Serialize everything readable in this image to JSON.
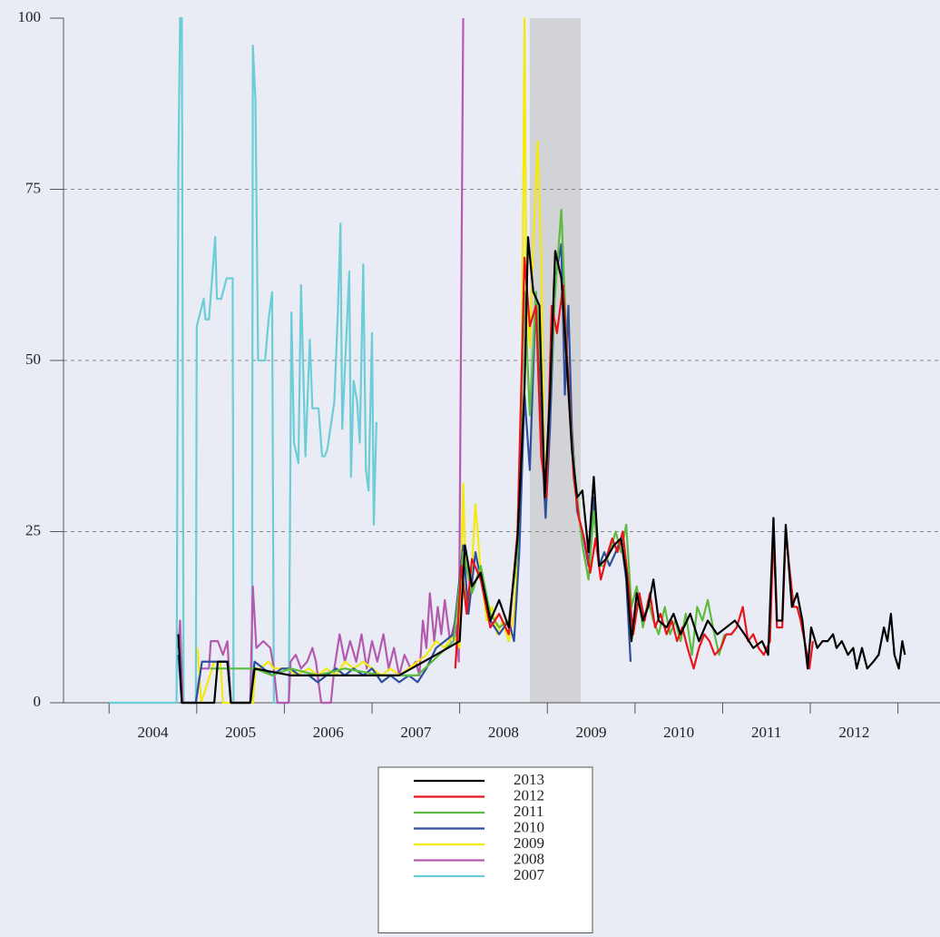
{
  "chart_data": {
    "type": "line",
    "xlim": [
      2003.48,
      2013.48
    ],
    "xticks": [
      2004,
      2005,
      2006,
      2007,
      2008,
      2009,
      2010,
      2011,
      2012,
      2013
    ],
    "ylim": [
      0,
      100
    ],
    "yticks": [
      0,
      25,
      50,
      75,
      100
    ],
    "grid": true,
    "legend": "bottom-center",
    "shaded_span": [
      2008.8,
      2009.38
    ],
    "series": [
      {
        "name": "2013",
        "color": "#000000",
        "x": [
          2004.79,
          2004.83,
          2005.2,
          2005.24,
          2005.35,
          2005.39,
          2005.61,
          2005.66,
          2006.07,
          2006.48,
          2006.9,
          2007.31,
          2007.73,
          2008.0,
          2008.06,
          2008.14,
          2008.24,
          2008.35,
          2008.45,
          2008.56,
          2008.66,
          2008.74,
          2008.78,
          2008.84,
          2008.91,
          2008.97,
          2009.03,
          2009.09,
          2009.16,
          2009.22,
          2009.28,
          2009.34,
          2009.4,
          2009.47,
          2009.53,
          2009.59,
          2009.67,
          2009.76,
          2009.84,
          2009.9,
          2009.96,
          2010.02,
          2010.09,
          2010.15,
          2010.21,
          2010.27,
          2010.36,
          2010.44,
          2010.52,
          2010.63,
          2010.73,
          2010.83,
          2010.94,
          2011.04,
          2011.14,
          2011.25,
          2011.35,
          2011.45,
          2011.52,
          2011.58,
          2011.62,
          2011.68,
          2011.72,
          2011.79,
          2011.85,
          2011.91,
          2011.97,
          2012.01,
          2012.08,
          2012.14,
          2012.2,
          2012.26,
          2012.3,
          2012.36,
          2012.43,
          2012.49,
          2012.53,
          2012.59,
          2012.65,
          2012.72,
          2012.78,
          2012.84,
          2012.88,
          2012.92,
          2012.96,
          2013.01,
          2013.05,
          2013.08
        ],
        "values": [
          10,
          0,
          0,
          6,
          6,
          0,
          0,
          5,
          4,
          4,
          4,
          4,
          7,
          9,
          23,
          17,
          19,
          12,
          15,
          11,
          24,
          46,
          68,
          60,
          58,
          30,
          45,
          66,
          62,
          50,
          37,
          30,
          31,
          22,
          33,
          20,
          21,
          23,
          24,
          19,
          9,
          16,
          12,
          14,
          18,
          12,
          11,
          13,
          10,
          13,
          9,
          12,
          10,
          11,
          12,
          10,
          8,
          9,
          7,
          27,
          12,
          12,
          26,
          14,
          16,
          12,
          5,
          11,
          8,
          9,
          9,
          10,
          8,
          9,
          7,
          8,
          5,
          8,
          5,
          6,
          7,
          11,
          9,
          13,
          7,
          5,
          9,
          7
        ]
      },
      {
        "name": "2012",
        "color": "#e8141c",
        "x": [
          2007.95,
          2008.02,
          2008.08,
          2008.14,
          2008.24,
          2008.35,
          2008.45,
          2008.56,
          2008.66,
          2008.74,
          2008.8,
          2008.87,
          2008.93,
          2008.99,
          2009.05,
          2009.11,
          2009.18,
          2009.24,
          2009.3,
          2009.36,
          2009.42,
          2009.49,
          2009.55,
          2009.61,
          2009.67,
          2009.74,
          2009.8,
          2009.86,
          2009.92,
          2009.98,
          2010.05,
          2010.11,
          2010.17,
          2010.23,
          2010.29,
          2010.36,
          2010.42,
          2010.48,
          2010.54,
          2010.6,
          2010.67,
          2010.73,
          2010.79,
          2010.85,
          2010.91,
          2010.98,
          2011.04,
          2011.1,
          2011.16,
          2011.23,
          2011.29,
          2011.35,
          2011.41,
          2011.47,
          2011.54,
          2011.58,
          2011.62,
          2011.68,
          2011.72,
          2011.76,
          2011.81,
          2011.85,
          2011.89,
          2011.95,
          2011.99,
          2012.03
        ],
        "values": [
          5,
          20,
          13,
          21,
          18,
          11,
          13,
          10,
          25,
          65,
          55,
          58,
          36,
          30,
          58,
          54,
          61,
          47,
          33,
          27,
          24,
          19,
          24,
          18,
          21,
          24,
          22,
          25,
          18,
          10,
          16,
          12,
          16,
          11,
          13,
          10,
          12,
          9,
          11,
          8,
          5,
          8,
          10,
          9,
          7,
          8,
          10,
          10,
          11,
          14,
          9,
          10,
          8,
          7,
          9,
          25,
          11,
          11,
          25,
          20,
          14,
          14,
          12,
          8,
          5,
          9
        ]
      },
      {
        "name": "2011",
        "color": "#5dbb3f",
        "x": [
          2005.16,
          2005.35,
          2005.66,
          2005.86,
          2006.07,
          2006.38,
          2006.69,
          2007.11,
          2007.52,
          2007.93,
          2008.04,
          2008.14,
          2008.24,
          2008.35,
          2008.45,
          2008.56,
          2008.66,
          2008.74,
          2008.8,
          2008.87,
          2008.93,
          2008.97,
          2009.03,
          2009.09,
          2009.16,
          2009.22,
          2009.28,
          2009.34,
          2009.4,
          2009.47,
          2009.53,
          2009.59,
          2009.65,
          2009.71,
          2009.78,
          2009.84,
          2009.9,
          2009.96,
          2010.02,
          2010.09,
          2010.15,
          2010.21,
          2010.27,
          2010.34,
          2010.4,
          2010.46,
          2010.52,
          2010.58,
          2010.65,
          2010.71,
          2010.77,
          2010.83,
          2010.89,
          2010.96,
          2011.02
        ],
        "values": [
          5,
          5,
          5,
          4,
          5,
          4,
          5,
          4,
          4,
          9,
          22,
          16,
          20,
          13,
          11,
          12,
          22,
          60,
          42,
          60,
          48,
          30,
          45,
          60,
          72,
          52,
          38,
          30,
          23,
          18,
          28,
          20,
          20,
          22,
          25,
          22,
          26,
          14,
          17,
          11,
          15,
          12,
          10,
          14,
          10,
          12,
          9,
          13,
          7,
          14,
          12,
          15,
          11,
          7,
          10
        ]
      },
      {
        "name": "2010",
        "color": "#2f4f9e",
        "x": [
          2004.79,
          2004.83,
          2004.99,
          2005.06,
          2005.28,
          2005.35,
          2005.39,
          2005.61,
          2005.66,
          2005.76,
          2005.86,
          2005.97,
          2006.07,
          2006.17,
          2006.28,
          2006.38,
          2006.48,
          2006.59,
          2006.69,
          2006.79,
          2006.9,
          2007.0,
          2007.11,
          2007.21,
          2007.31,
          2007.42,
          2007.52,
          2007.62,
          2007.73,
          2007.83,
          2007.93,
          2008.04,
          2008.1,
          2008.18,
          2008.24,
          2008.35,
          2008.45,
          2008.56,
          2008.62,
          2008.68,
          2008.74,
          2008.8,
          2008.87,
          2008.93,
          2008.98,
          2009.03,
          2009.09,
          2009.16,
          2009.2,
          2009.24,
          2009.28,
          2009.34,
          2009.4,
          2009.47,
          2009.53,
          2009.59,
          2009.65,
          2009.71,
          2009.78,
          2009.84,
          2009.9,
          2009.95
        ],
        "values": [
          7,
          0,
          0,
          6,
          6,
          6,
          0,
          0,
          6,
          5,
          4,
          5,
          5,
          4,
          4,
          3,
          4,
          5,
          4,
          5,
          4,
          5,
          3,
          4,
          3,
          4,
          3,
          5,
          8,
          9,
          10,
          23,
          13,
          22,
          18,
          12,
          10,
          12,
          9,
          22,
          45,
          34,
          60,
          40,
          27,
          40,
          62,
          67,
          45,
          58,
          40,
          28,
          25,
          20,
          30,
          20,
          22,
          20,
          22,
          24,
          18,
          6
        ]
      },
      {
        "name": "2009",
        "color": "#f5e90c",
        "x": [
          2005.01,
          2005.05,
          2005.2,
          2005.27,
          2005.3,
          2005.64,
          2005.67,
          2005.72,
          2005.82,
          2005.88,
          2006.05,
          2006.13,
          2006.28,
          2006.38,
          2006.48,
          2006.59,
          2006.69,
          2006.79,
          2006.9,
          2007.0,
          2007.11,
          2007.21,
          2007.31,
          2007.42,
          2007.52,
          2007.62,
          2007.73,
          2007.83,
          2007.93,
          2008.0,
          2008.04,
          2008.08,
          2008.14,
          2008.18,
          2008.24,
          2008.31,
          2008.37,
          2008.43,
          2008.49,
          2008.56,
          2008.62,
          2008.66,
          2008.7,
          2008.74,
          2008.76,
          2008.8,
          2008.84,
          2008.89,
          2008.93,
          2008.97,
          2009.01,
          2009.05
        ],
        "values": [
          8,
          0,
          6,
          6,
          0,
          0,
          5,
          5,
          6,
          5,
          5,
          4,
          5,
          4,
          5,
          4,
          6,
          5,
          6,
          5,
          4,
          5,
          4,
          5,
          6,
          7,
          9,
          8,
          10,
          8,
          32,
          13,
          20,
          29,
          19,
          12,
          14,
          10,
          12,
          9,
          13,
          21,
          30,
          100,
          60,
          52,
          67,
          82,
          65,
          30,
          35,
          50
        ]
      },
      {
        "name": "2008",
        "color": "#b45aae",
        "x": [
          2004.79,
          2004.81,
          2004.84,
          2004.99,
          2005.04,
          2005.14,
          2005.16,
          2005.24,
          2005.3,
          2005.35,
          2005.39,
          2005.61,
          2005.64,
          2005.68,
          2005.76,
          2005.84,
          2005.88,
          2005.92,
          2006.05,
          2006.07,
          2006.13,
          2006.19,
          2006.26,
          2006.32,
          2006.36,
          2006.42,
          2006.53,
          2006.57,
          2006.63,
          2006.69,
          2006.75,
          2006.82,
          2006.88,
          2006.94,
          2007.0,
          2007.06,
          2007.13,
          2007.19,
          2007.25,
          2007.31,
          2007.37,
          2007.44,
          2007.5,
          2007.54,
          2007.58,
          2007.62,
          2007.66,
          2007.71,
          2007.75,
          2007.79,
          2007.83,
          2007.89,
          2007.95,
          2007.99,
          2008.04
        ],
        "values": [
          8,
          12,
          0,
          0,
          5,
          5,
          9,
          9,
          7,
          9,
          0,
          0,
          17,
          8,
          9,
          8,
          5,
          0,
          0,
          6,
          7,
          5,
          6,
          8,
          6,
          0,
          0,
          5,
          10,
          6,
          9,
          6,
          10,
          5,
          9,
          6,
          10,
          5,
          8,
          4,
          7,
          5,
          6,
          4,
          12,
          8,
          16,
          9,
          14,
          10,
          15,
          9,
          12,
          6,
          100
        ]
      },
      {
        "name": "2007",
        "color": "#6cccd8",
        "x": [
          2004.0,
          2004.77,
          2004.79,
          2004.81,
          2004.83,
          2004.85,
          2004.99,
          2005.0,
          2005.08,
          2005.1,
          2005.14,
          2005.21,
          2005.23,
          2005.28,
          2005.34,
          2005.41,
          2005.42,
          2005.63,
          2005.64,
          2005.67,
          2005.7,
          2005.78,
          2005.82,
          2005.86,
          2005.88,
          2006.05,
          2006.08,
          2006.11,
          2006.16,
          2006.19,
          2006.24,
          2006.29,
          2006.32,
          2006.39,
          2006.43,
          2006.46,
          2006.49,
          2006.57,
          2006.61,
          2006.64,
          2006.66,
          2006.74,
          2006.76,
          2006.79,
          2006.83,
          2006.86,
          2006.9,
          2006.93,
          2006.96,
          2007.0,
          2007.02,
          2007.05
        ],
        "values": [
          0,
          0,
          78,
          100,
          100,
          0,
          0,
          55,
          59,
          56,
          56,
          68,
          59,
          59,
          62,
          62,
          0,
          0,
          96,
          88,
          50,
          50,
          56,
          60,
          0,
          0,
          57,
          38,
          35,
          61,
          36,
          53,
          43,
          43,
          36,
          36,
          37,
          44,
          57,
          70,
          40,
          63,
          33,
          47,
          44,
          38,
          64,
          34,
          31,
          54,
          26,
          41
        ]
      }
    ]
  }
}
